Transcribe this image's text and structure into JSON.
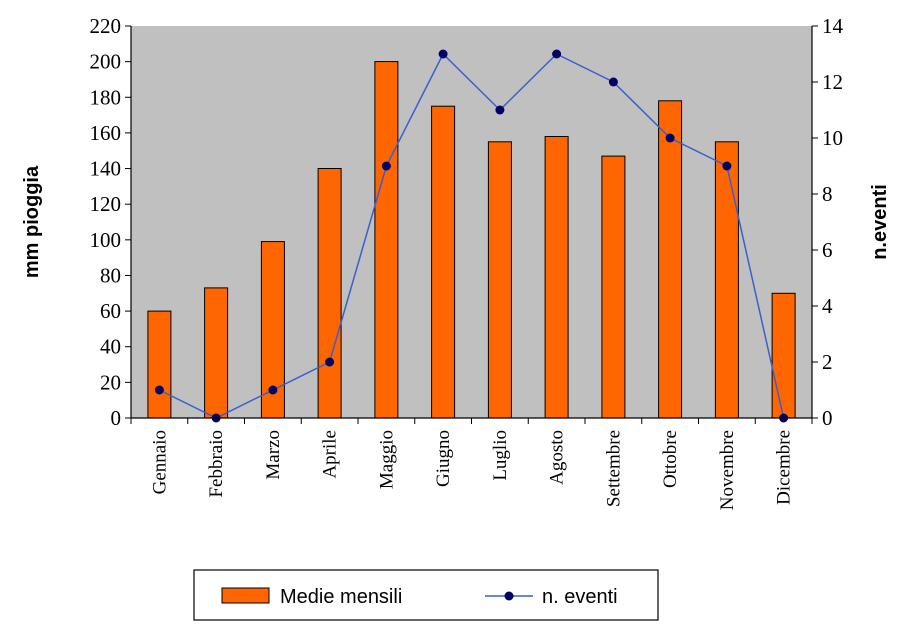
{
  "chart_data": {
    "type": "bar",
    "categories": [
      "Gennaio",
      "Febbraio",
      "Marzo",
      "Aprile",
      "Maggio",
      "Giugno",
      "Luglio",
      "Agosto",
      "Settembre",
      "Ottobre",
      "Novembre",
      "Dicembre"
    ],
    "series": [
      {
        "name": "Medie mensili",
        "type": "bar",
        "axis": "left",
        "color": "#ff6600",
        "values": [
          60,
          73,
          99,
          140,
          200,
          175,
          155,
          158,
          147,
          178,
          155,
          70
        ]
      },
      {
        "name": "n. eventi",
        "type": "line",
        "axis": "right",
        "color": "#3a5fcd",
        "marker_color": "#000066",
        "values": [
          1,
          0,
          1,
          2,
          9,
          13,
          11,
          13,
          12,
          10,
          9,
          0
        ]
      }
    ],
    "ylabel": "mm pioggia",
    "ylabel_right": "n.eventi",
    "ylim": [
      0,
      220
    ],
    "ylim_right": [
      0,
      14
    ],
    "yticks": [
      "0",
      "20",
      "40",
      "60",
      "80",
      "100",
      "120",
      "140",
      "160",
      "180",
      "200",
      "220"
    ],
    "yticks_right": [
      "0",
      "2",
      "4",
      "6",
      "8",
      "10",
      "12",
      "14"
    ],
    "plot_background": "#c0c0c0",
    "grid": false,
    "legend_position": "bottom"
  }
}
